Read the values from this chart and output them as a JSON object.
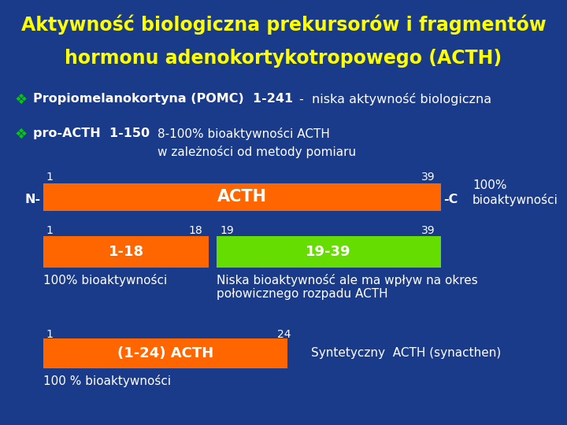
{
  "title_line1": "Aktywność biologiczna prekursorów i fragmentów",
  "title_line2": "hormonu adenokortykotropowego (ACTH)",
  "title_color": "#FFFF00",
  "bg_color": "#1a3a8a",
  "text_color": "#FFFFFF",
  "bullet_color": "#00CC00",
  "orange_color": "#FF6600",
  "green_color": "#66DD00",
  "line1_bullet": "❖",
  "line1_text": "Propiomelanokortyna (POMC)  1-241",
  "line1_text2": "-  niska aktywność biologiczna",
  "line2_bullet": "❖",
  "line2_text1": "pro-ACTH  1-150",
  "line2_text2": "8-100% bioaktywności ACTH",
  "line2_text3": "w zależności od metody pomiaru",
  "acth_bar_label": "ACTH",
  "acth_bar_left": "N-",
  "acth_bar_right": "-C",
  "acth_note": "100%\nbioaktywności",
  "bar1_label": "1-18",
  "bar2_label": "19-39",
  "note1_100": "100% bioaktywności",
  "note2_niska": "Niska bioaktywność ale ma wpływ na okres\npołowicznego rozpadu ACTH",
  "bar3_label": "(1-24) ACTH",
  "note3": "Syntetyczny  ACTH (synacthen)",
  "note3_100": "100 % bioaktywności"
}
